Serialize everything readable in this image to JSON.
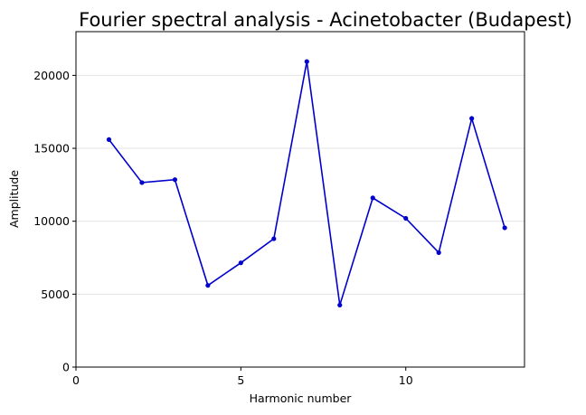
{
  "chart_data": {
    "type": "line",
    "title": "Fourier spectral analysis - Acinetobacter (Budapest)",
    "xlabel": "Harmonic number",
    "ylabel": "Amplitude",
    "xlim": [
      0,
      13.6
    ],
    "ylim": [
      0,
      23000
    ],
    "xticks": [
      0,
      5,
      10
    ],
    "yticks": [
      0,
      5000,
      10000,
      15000,
      20000
    ],
    "grid": "horizontal",
    "color": "#0000cc",
    "series": [
      {
        "x": [
          1,
          2,
          3,
          4,
          5,
          6,
          7,
          8,
          9,
          10,
          11,
          12,
          13
        ],
        "y": [
          15600,
          12650,
          12850,
          5600,
          7150,
          8800,
          20950,
          4250,
          11600,
          10200,
          7850,
          17050,
          9550
        ]
      }
    ]
  }
}
